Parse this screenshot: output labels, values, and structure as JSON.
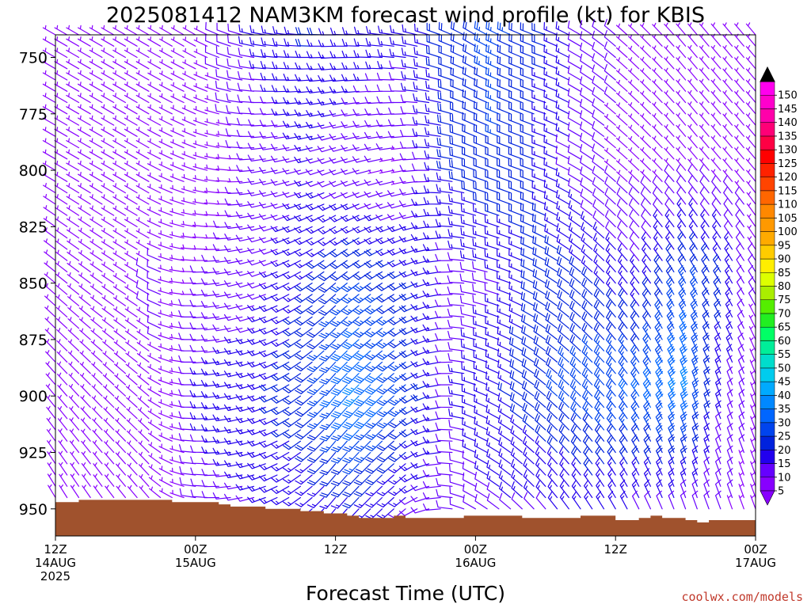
{
  "chart_data": {
    "type": "wind-barb-profile",
    "title": "2025081412 NAM3KM forecast wind profile (kt) for KBIS",
    "xlabel": "Forecast Time (UTC)",
    "ylabel": "",
    "credit": "coolwx.com/models",
    "y_axis": {
      "ticks": [
        750,
        775,
        800,
        825,
        850,
        875,
        900,
        925,
        950
      ],
      "range": [
        740,
        962
      ],
      "inverted": true
    },
    "x_axis": {
      "range_hours": [
        0,
        60
      ],
      "ticks": [
        {
          "hour": 0,
          "line1": "12Z",
          "line2": "14AUG",
          "line3": "2025"
        },
        {
          "hour": 12,
          "line1": "00Z",
          "line2": "15AUG",
          "line3": ""
        },
        {
          "hour": 24,
          "line1": "12Z",
          "line2": "",
          "line3": ""
        },
        {
          "hour": 36,
          "line1": "00Z",
          "line2": "16AUG",
          "line3": ""
        },
        {
          "hour": 48,
          "line1": "12Z",
          "line2": "",
          "line3": ""
        },
        {
          "hour": 60,
          "line1": "00Z",
          "line2": "17AUG",
          "line3": ""
        }
      ]
    },
    "colorbar": {
      "levels": [
        5,
        10,
        15,
        20,
        25,
        30,
        35,
        40,
        45,
        50,
        55,
        60,
        65,
        70,
        75,
        80,
        85,
        90,
        95,
        100,
        105,
        110,
        115,
        120,
        125,
        130,
        135,
        140,
        145,
        150
      ],
      "colors": [
        "#8800ff",
        "#6600ff",
        "#2200ee",
        "#0022dd",
        "#0044ee",
        "#0066ff",
        "#0088ff",
        "#00aaff",
        "#00ccee",
        "#00ddcc",
        "#00ee99",
        "#00ff66",
        "#22ee22",
        "#55ee00",
        "#aaee00",
        "#ddff00",
        "#ffee00",
        "#ffcc00",
        "#ffaa00",
        "#ff9900",
        "#ff8800",
        "#ff6600",
        "#ff4400",
        "#ff2200",
        "#ff0000",
        "#ff0044",
        "#ff0077",
        "#ff00aa",
        "#ff00cc",
        "#ff00ee"
      ]
    },
    "terrain": {
      "color": "#a0522d",
      "surface_pressure": [
        [
          0,
          947
        ],
        [
          1,
          947
        ],
        [
          2,
          946
        ],
        [
          3,
          946
        ],
        [
          4,
          946
        ],
        [
          5,
          946
        ],
        [
          6,
          946
        ],
        [
          7,
          946
        ],
        [
          8,
          946
        ],
        [
          9,
          946
        ],
        [
          10,
          947
        ],
        [
          11,
          947
        ],
        [
          12,
          947
        ],
        [
          13,
          947
        ],
        [
          14,
          948
        ],
        [
          15,
          949
        ],
        [
          16,
          949
        ],
        [
          17,
          949
        ],
        [
          18,
          950
        ],
        [
          19,
          950
        ],
        [
          20,
          950
        ],
        [
          21,
          951
        ],
        [
          22,
          951
        ],
        [
          23,
          952
        ],
        [
          24,
          952
        ],
        [
          25,
          953
        ],
        [
          26,
          954
        ],
        [
          27,
          954
        ],
        [
          28,
          954
        ],
        [
          29,
          953
        ],
        [
          30,
          954
        ],
        [
          31,
          954
        ],
        [
          32,
          954
        ],
        [
          33,
          954
        ],
        [
          34,
          954
        ],
        [
          35,
          953
        ],
        [
          36,
          953
        ],
        [
          37,
          953
        ],
        [
          38,
          953
        ],
        [
          39,
          953
        ],
        [
          40,
          954
        ],
        [
          41,
          954
        ],
        [
          42,
          954
        ],
        [
          43,
          954
        ],
        [
          44,
          954
        ],
        [
          45,
          953
        ],
        [
          46,
          953
        ],
        [
          47,
          953
        ],
        [
          48,
          955
        ],
        [
          49,
          955
        ],
        [
          50,
          954
        ],
        [
          51,
          953
        ],
        [
          52,
          954
        ],
        [
          53,
          954
        ],
        [
          54,
          955
        ],
        [
          55,
          956
        ],
        [
          56,
          955
        ],
        [
          57,
          955
        ],
        [
          58,
          955
        ],
        [
          59,
          955
        ],
        [
          60,
          955
        ]
      ]
    },
    "wind": {
      "levels": [
        740,
        745,
        750,
        755,
        760,
        765,
        770,
        775,
        780,
        785,
        790,
        795,
        800,
        805,
        810,
        815,
        820,
        825,
        830,
        835,
        840,
        845,
        850,
        855,
        860,
        865,
        870,
        875,
        880,
        885,
        890,
        895,
        900,
        905,
        910,
        915,
        920,
        925,
        930,
        935,
        940,
        945,
        950
      ],
      "speed_keys": [
        [
          0,
          [
            [
              740,
              8
            ],
            [
              800,
              8
            ],
            [
              850,
              8
            ],
            [
              900,
              8
            ],
            [
              950,
              8
            ]
          ]
        ],
        [
          6,
          [
            [
              740,
              8
            ],
            [
              800,
              8
            ],
            [
              850,
              9
            ],
            [
              900,
              9
            ],
            [
              950,
              9
            ]
          ]
        ],
        [
          9,
          [
            [
              740,
              8
            ],
            [
              800,
              8
            ],
            [
              850,
              10
            ],
            [
              900,
              9
            ],
            [
              950,
              9
            ]
          ]
        ],
        [
          11,
          [
            [
              740,
              8
            ],
            [
              800,
              6
            ],
            [
              850,
              8
            ],
            [
              900,
              8
            ],
            [
              950,
              8
            ]
          ]
        ],
        [
          13,
          [
            [
              740,
              9
            ],
            [
              800,
              6
            ],
            [
              850,
              10
            ],
            [
              900,
              16
            ],
            [
              950,
              12
            ]
          ]
        ],
        [
          17,
          [
            [
              740,
              15
            ],
            [
              800,
              10
            ],
            [
              850,
              12
            ],
            [
              900,
              18
            ],
            [
              950,
              14
            ]
          ]
        ],
        [
          22,
          [
            [
              740,
              20
            ],
            [
              800,
              14
            ],
            [
              850,
              20
            ],
            [
              900,
              24
            ],
            [
              950,
              16
            ]
          ]
        ],
        [
          26,
          [
            [
              740,
              18
            ],
            [
              800,
              10
            ],
            [
              850,
              26
            ],
            [
              900,
              36
            ],
            [
              950,
              18
            ]
          ]
        ],
        [
          30,
          [
            [
              740,
              16
            ],
            [
              800,
              8
            ],
            [
              850,
              22
            ],
            [
              900,
              26
            ],
            [
              950,
              14
            ]
          ]
        ],
        [
          34,
          [
            [
              740,
              22
            ],
            [
              800,
              20
            ],
            [
              850,
              12
            ],
            [
              900,
              14
            ],
            [
              950,
              12
            ]
          ]
        ],
        [
          38,
          [
            [
              740,
              26
            ],
            [
              800,
              24
            ],
            [
              850,
              14
            ],
            [
              900,
              18
            ],
            [
              950,
              14
            ]
          ]
        ],
        [
          42,
          [
            [
              740,
              20
            ],
            [
              800,
              18
            ],
            [
              850,
              22
            ],
            [
              900,
              24
            ],
            [
              950,
              14
            ]
          ]
        ],
        [
          46,
          [
            [
              740,
              12
            ],
            [
              800,
              10
            ],
            [
              850,
              20
            ],
            [
              900,
              28
            ],
            [
              950,
              16
            ]
          ]
        ],
        [
          50,
          [
            [
              740,
              8
            ],
            [
              800,
              8
            ],
            [
              850,
              16
            ],
            [
              900,
              30
            ],
            [
              950,
              14
            ]
          ]
        ],
        [
          54,
          [
            [
              740,
              8
            ],
            [
              800,
              8
            ],
            [
              850,
              26
            ],
            [
              900,
              36
            ],
            [
              950,
              12
            ]
          ]
        ],
        [
          57,
          [
            [
              740,
              8
            ],
            [
              800,
              8
            ],
            [
              850,
              22
            ],
            [
              900,
              16
            ],
            [
              950,
              10
            ]
          ]
        ],
        [
          60,
          [
            [
              740,
              8
            ],
            [
              800,
              8
            ],
            [
              850,
              10
            ],
            [
              900,
              8
            ],
            [
              950,
              8
            ]
          ]
        ]
      ],
      "direction_keys": [
        [
          0,
          [
            [
              740,
              300
            ],
            [
              800,
              300
            ],
            [
              850,
              310
            ],
            [
              900,
              320
            ],
            [
              950,
              330
            ]
          ]
        ],
        [
          8,
          [
            [
              740,
              300
            ],
            [
              800,
              300
            ],
            [
              850,
              300
            ],
            [
              900,
              310
            ],
            [
              950,
              320
            ]
          ]
        ],
        [
          12,
          [
            [
              740,
              300
            ],
            [
              800,
              290
            ],
            [
              850,
              270
            ],
            [
              900,
              270
            ],
            [
              950,
              280
            ]
          ]
        ],
        [
          18,
          [
            [
              740,
              280
            ],
            [
              800,
              260
            ],
            [
              850,
              250
            ],
            [
              900,
              250
            ],
            [
              950,
              250
            ]
          ]
        ],
        [
          24,
          [
            [
              740,
              270
            ],
            [
              800,
              250
            ],
            [
              850,
              230
            ],
            [
              900,
              220
            ],
            [
              950,
              220
            ]
          ]
        ],
        [
          30,
          [
            [
              740,
              280
            ],
            [
              800,
              260
            ],
            [
              850,
              240
            ],
            [
              900,
              230
            ],
            [
              950,
              230
            ]
          ]
        ],
        [
          36,
          [
            [
              740,
              300
            ],
            [
              800,
              290
            ],
            [
              850,
              280
            ],
            [
              900,
              290
            ],
            [
              950,
              300
            ]
          ]
        ],
        [
          42,
          [
            [
              740,
              290
            ],
            [
              800,
              290
            ],
            [
              850,
              300
            ],
            [
              900,
              310
            ],
            [
              950,
              320
            ]
          ]
        ],
        [
          48,
          [
            [
              740,
              310
            ],
            [
              800,
              310
            ],
            [
              850,
              320
            ],
            [
              900,
              320
            ],
            [
              950,
              330
            ]
          ]
        ],
        [
          54,
          [
            [
              740,
              320
            ],
            [
              800,
              320
            ],
            [
              850,
              330
            ],
            [
              900,
              340
            ],
            [
              950,
              340
            ]
          ]
        ],
        [
          60,
          [
            [
              740,
              320
            ],
            [
              800,
              320
            ],
            [
              850,
              330
            ],
            [
              900,
              340
            ],
            [
              950,
              340
            ]
          ]
        ]
      ]
    }
  }
}
